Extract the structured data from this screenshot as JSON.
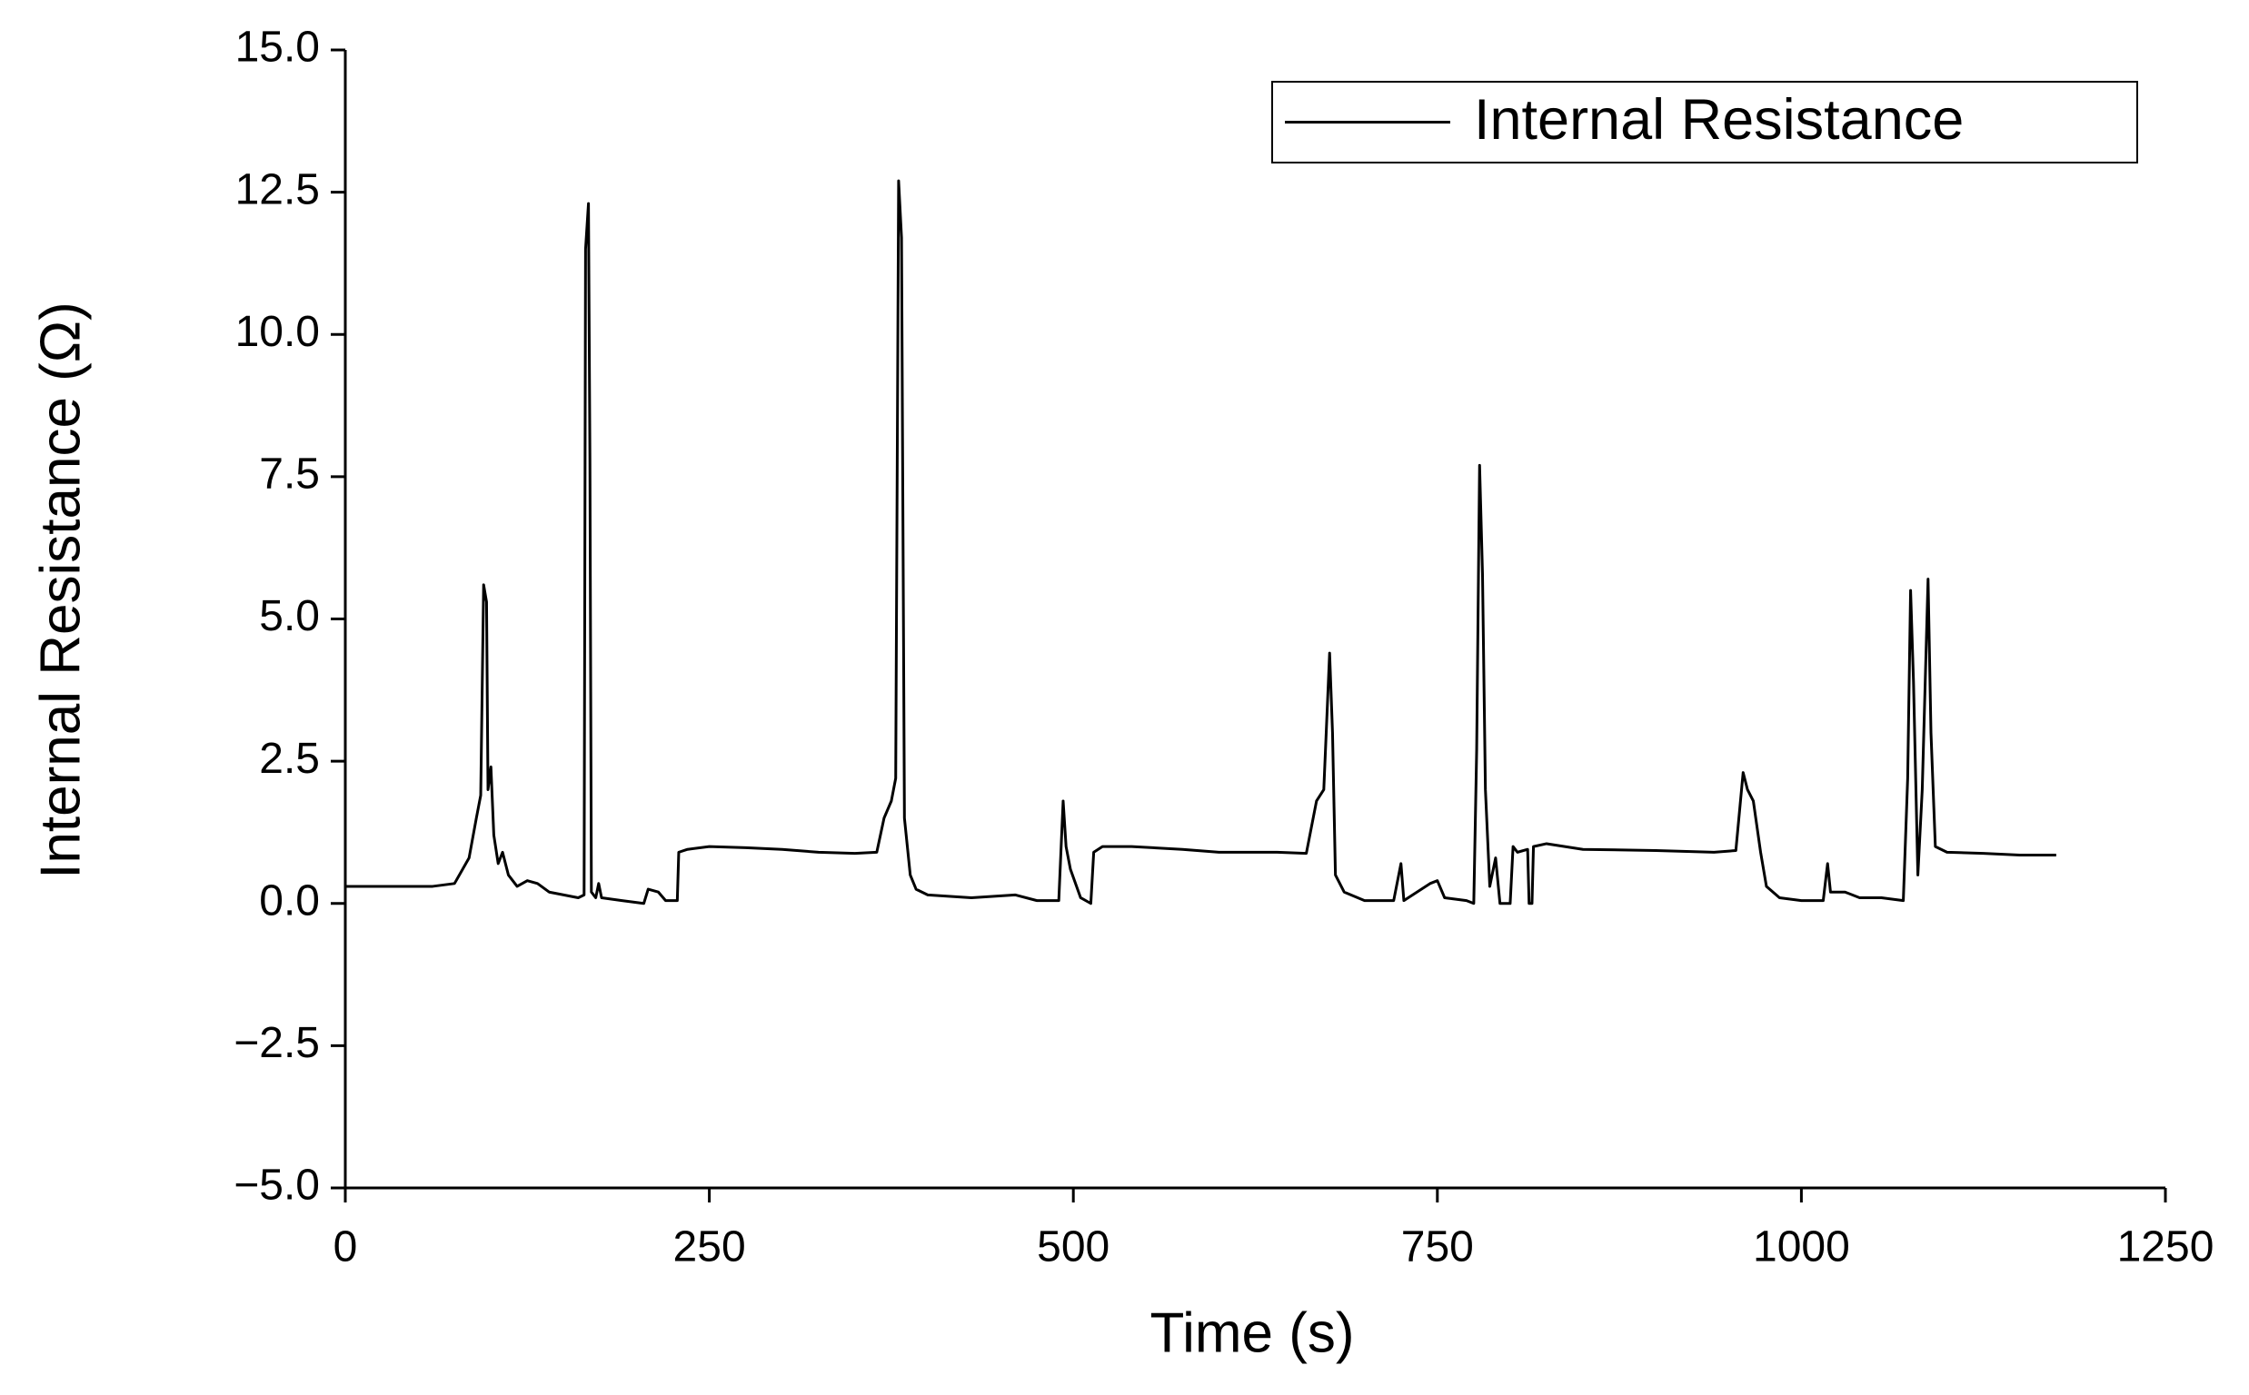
{
  "chart_data": {
    "type": "line",
    "xlabel": "Time (s)",
    "ylabel": "Internal Resistance (Ω)",
    "x": [
      0,
      60,
      75,
      85,
      90,
      93,
      95,
      97,
      98,
      100,
      102,
      105,
      108,
      112,
      118,
      125,
      132,
      140,
      150,
      160,
      164,
      165,
      167,
      168,
      169,
      172,
      174,
      176,
      190,
      205,
      208,
      215,
      220,
      228,
      229,
      235,
      250,
      275,
      300,
      325,
      350,
      365,
      370,
      375,
      378,
      380,
      382,
      384,
      388,
      392,
      400,
      430,
      460,
      475,
      490,
      493,
      495,
      498,
      505,
      512,
      514,
      520,
      540,
      575,
      600,
      640,
      660,
      667,
      672,
      676,
      678,
      680,
      686,
      700,
      720,
      725,
      727,
      745,
      750,
      755,
      770,
      775,
      777,
      779,
      781,
      783,
      786,
      790,
      793,
      800,
      802,
      805,
      812,
      813,
      815,
      816,
      825,
      850,
      900,
      940,
      955,
      960,
      963,
      967,
      972,
      976,
      985,
      1000,
      1015,
      1018,
      1020,
      1030,
      1040,
      1055,
      1070,
      1073,
      1075,
      1077,
      1080,
      1083,
      1087,
      1089,
      1092,
      1100,
      1125,
      1150,
      1175
    ],
    "series": [
      {
        "name": "Internal Resistance",
        "color": "#000000",
        "values": [
          0.3,
          0.3,
          0.35,
          0.8,
          1.5,
          1.9,
          5.6,
          5.3,
          2.0,
          2.4,
          1.2,
          0.7,
          0.9,
          0.5,
          0.3,
          0.4,
          0.35,
          0.2,
          0.15,
          0.1,
          0.15,
          11.5,
          12.3,
          7.8,
          0.2,
          0.1,
          0.35,
          0.1,
          0.05,
          0.0,
          0.25,
          0.2,
          0.05,
          0.05,
          0.9,
          0.95,
          1.0,
          0.98,
          0.95,
          0.9,
          0.88,
          0.9,
          1.5,
          1.8,
          2.2,
          12.7,
          11.7,
          1.5,
          0.5,
          0.25,
          0.15,
          0.1,
          0.15,
          0.05,
          0.05,
          1.8,
          1.0,
          0.6,
          0.1,
          0.0,
          0.9,
          1.0,
          1.0,
          0.95,
          0.9,
          0.9,
          0.88,
          1.8,
          2.0,
          4.4,
          3.0,
          0.5,
          0.2,
          0.05,
          0.05,
          0.7,
          0.05,
          0.35,
          0.4,
          0.1,
          0.05,
          0.0,
          2.7,
          7.7,
          5.8,
          2.0,
          0.3,
          0.8,
          0.0,
          0.0,
          1.0,
          0.9,
          0.95,
          0.0,
          0.0,
          1.0,
          1.05,
          0.95,
          0.93,
          0.9,
          0.93,
          2.3,
          2.0,
          1.8,
          0.9,
          0.3,
          0.1,
          0.05,
          0.05,
          0.7,
          0.2,
          0.2,
          0.1,
          0.1,
          0.05,
          2.2,
          5.5,
          3.9,
          0.5,
          2.0,
          5.7,
          3.0,
          1.0,
          0.9,
          0.88,
          0.85,
          0.85
        ]
      }
    ],
    "xlim": [
      0,
      1250
    ],
    "xticks": [
      0,
      250,
      500,
      750,
      1000,
      1250
    ],
    "ylim": [
      -5,
      15
    ],
    "yticks": [
      {
        "value": -5,
        "label": "−5.0"
      },
      {
        "value": -2.5,
        "label": "−2.5"
      },
      {
        "value": 0,
        "label": "0.0"
      },
      2.5,
      {
        "value": 5,
        "label": "5.0"
      },
      7.5,
      {
        "value": 10,
        "label": "10.0"
      },
      12.5,
      {
        "value": 15,
        "label": "15.0"
      }
    ],
    "legend": "upper right",
    "grid": false
  }
}
